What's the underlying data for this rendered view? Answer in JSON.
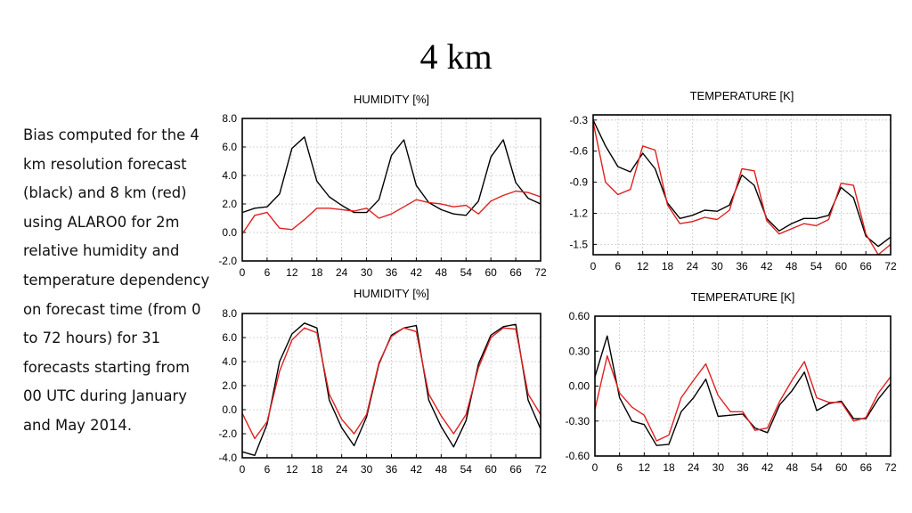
{
  "slide": {
    "title": "4 km",
    "caption": "Bias computed for the 4 km resolution forecast (black) and 8 km (red) using ALARO0 for 2m relative humidity and temperature dependency on forecast time (from 0 to 72 hours) for 31 forecasts starting from 00 UTC during January and May 2014."
  },
  "colors": {
    "series_4km": "#000000",
    "series_8km": "#e02020",
    "grid": "#c8c8c8"
  },
  "chart_data": [
    {
      "type": "line",
      "title": "HUMIDITY [%]",
      "xlabel": "",
      "ylabel": "",
      "xlim": [
        0,
        72
      ],
      "ylim": [
        -2.0,
        8.0
      ],
      "xticks": [
        "0",
        "6",
        "12",
        "18",
        "24",
        "30",
        "36",
        "42",
        "48",
        "54",
        "60",
        "66",
        "72"
      ],
      "yticks": [
        "-2.0",
        "0.0",
        "2.0",
        "4.0",
        "6.0",
        "8.0"
      ],
      "grid": true,
      "x": [
        0,
        3,
        6,
        9,
        12,
        15,
        18,
        21,
        24,
        27,
        30,
        33,
        36,
        39,
        42,
        45,
        48,
        51,
        54,
        57,
        60,
        63,
        66,
        69,
        72
      ],
      "series": [
        {
          "color": "#000000",
          "values": [
            1.4,
            1.7,
            1.8,
            2.7,
            5.9,
            6.7,
            3.6,
            2.5,
            1.9,
            1.4,
            1.4,
            2.3,
            5.4,
            6.5,
            3.3,
            2.1,
            1.6,
            1.3,
            1.2,
            2.2,
            5.3,
            6.5,
            3.5,
            2.4,
            2.0
          ]
        },
        {
          "color": "#e02020",
          "values": [
            -0.1,
            1.2,
            1.4,
            0.3,
            0.2,
            0.9,
            1.7,
            1.7,
            1.6,
            1.5,
            1.7,
            1.0,
            1.3,
            1.8,
            2.3,
            2.1,
            2.0,
            1.8,
            1.9,
            1.3,
            2.2,
            2.6,
            2.9,
            2.8,
            2.5
          ]
        }
      ]
    },
    {
      "type": "line",
      "title": "TEMPERATURE [K]",
      "xlabel": "",
      "ylabel": "",
      "xlim": [
        0,
        72
      ],
      "ylim": [
        -1.6,
        -0.25
      ],
      "xticks": [
        "0",
        "6",
        "12",
        "18",
        "24",
        "30",
        "36",
        "42",
        "48",
        "54",
        "60",
        "66",
        "72"
      ],
      "yticks": [
        "-0.3",
        "-0.6",
        "-0.9",
        "-1.2",
        "-1.5"
      ],
      "grid": true,
      "x": [
        0,
        3,
        6,
        9,
        12,
        15,
        18,
        21,
        24,
        27,
        30,
        33,
        36,
        39,
        42,
        45,
        48,
        51,
        54,
        57,
        60,
        63,
        66,
        69,
        72
      ],
      "series": [
        {
          "color": "#000000",
          "values": [
            -0.3,
            -0.55,
            -0.75,
            -0.8,
            -0.62,
            -0.77,
            -1.1,
            -1.25,
            -1.22,
            -1.17,
            -1.18,
            -1.12,
            -0.83,
            -0.93,
            -1.25,
            -1.37,
            -1.3,
            -1.25,
            -1.25,
            -1.22,
            -0.95,
            -1.05,
            -1.42,
            -1.52,
            -1.43
          ]
        },
        {
          "color": "#e02020",
          "values": [
            -0.32,
            -0.9,
            -1.02,
            -0.97,
            -0.55,
            -0.59,
            -1.12,
            -1.3,
            -1.28,
            -1.24,
            -1.26,
            -1.17,
            -0.77,
            -0.79,
            -1.27,
            -1.4,
            -1.35,
            -1.3,
            -1.32,
            -1.26,
            -0.91,
            -0.93,
            -1.4,
            -1.6,
            -1.5
          ]
        }
      ]
    },
    {
      "type": "line",
      "title": "HUMIDITY [%]",
      "xlabel": "",
      "ylabel": "",
      "xlim": [
        0,
        72
      ],
      "ylim": [
        -4.0,
        8.0
      ],
      "xticks": [
        "0",
        "6",
        "12",
        "18",
        "24",
        "30",
        "36",
        "42",
        "48",
        "54",
        "60",
        "66",
        "72"
      ],
      "yticks": [
        "-4.0",
        "-2.0",
        "0.0",
        "2.0",
        "4.0",
        "6.0",
        "8.0"
      ],
      "grid": true,
      "x": [
        0,
        3,
        6,
        9,
        12,
        15,
        18,
        21,
        24,
        27,
        30,
        33,
        36,
        39,
        42,
        45,
        48,
        51,
        54,
        57,
        60,
        63,
        66,
        69,
        72
      ],
      "series": [
        {
          "color": "#000000",
          "values": [
            -3.5,
            -3.8,
            -1.2,
            4.0,
            6.3,
            7.2,
            6.8,
            0.8,
            -1.5,
            -3.0,
            -0.6,
            3.8,
            6.2,
            6.8,
            7.0,
            0.8,
            -1.4,
            -3.1,
            -0.9,
            3.8,
            6.2,
            6.9,
            7.1,
            0.8,
            -1.6
          ]
        },
        {
          "color": "#e02020",
          "values": [
            -0.3,
            -2.4,
            -1.0,
            3.2,
            5.8,
            6.8,
            6.4,
            1.3,
            -0.8,
            -2.0,
            -0.4,
            3.9,
            6.1,
            6.8,
            6.5,
            1.3,
            -0.5,
            -2.0,
            -0.4,
            3.5,
            6.0,
            6.8,
            6.7,
            1.3,
            -0.4
          ]
        }
      ]
    },
    {
      "type": "line",
      "title": "TEMPERATURE [K]",
      "xlabel": "",
      "ylabel": "",
      "xlim": [
        0,
        72
      ],
      "ylim": [
        -0.6,
        0.6
      ],
      "xticks": [
        "0",
        "6",
        "12",
        "18",
        "24",
        "30",
        "36",
        "42",
        "48",
        "54",
        "60",
        "66",
        "72"
      ],
      "yticks": [
        "0.60",
        "0.30",
        "0.00",
        "-0.30",
        "-0.60"
      ],
      "grid": true,
      "x": [
        0,
        3,
        6,
        9,
        12,
        15,
        18,
        21,
        24,
        27,
        30,
        33,
        36,
        39,
        42,
        45,
        48,
        51,
        54,
        57,
        60,
        63,
        66,
        69,
        72
      ],
      "series": [
        {
          "color": "#000000",
          "values": [
            0.08,
            0.43,
            -0.1,
            -0.3,
            -0.33,
            -0.51,
            -0.5,
            -0.22,
            -0.1,
            0.06,
            -0.26,
            -0.25,
            -0.24,
            -0.36,
            -0.4,
            -0.16,
            -0.04,
            0.12,
            -0.21,
            -0.15,
            -0.13,
            -0.28,
            -0.28,
            -0.11,
            0.02
          ]
        },
        {
          "color": "#e02020",
          "values": [
            -0.2,
            0.26,
            -0.06,
            -0.18,
            -0.25,
            -0.47,
            -0.42,
            -0.1,
            0.05,
            0.19,
            -0.08,
            -0.22,
            -0.22,
            -0.38,
            -0.36,
            -0.13,
            0.05,
            0.21,
            -0.1,
            -0.14,
            -0.14,
            -0.3,
            -0.27,
            -0.06,
            0.08
          ]
        }
      ]
    }
  ]
}
